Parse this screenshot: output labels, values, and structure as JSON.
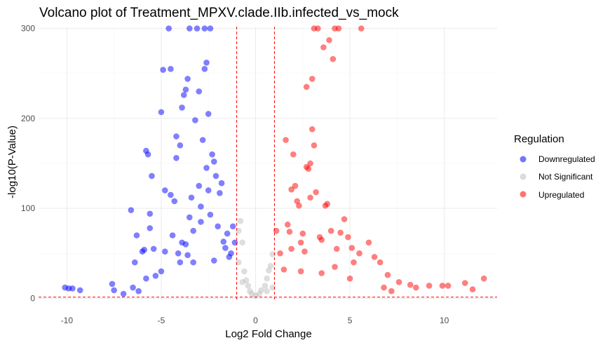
{
  "colors": {
    "down": "#0000ff",
    "ns": "#bebebe",
    "up": "#ff0000",
    "threshold": "#ff0000",
    "grid_major": "#ebebeb",
    "grid_minor": "#f5f5f5"
  },
  "chart_data": {
    "type": "scatter",
    "title": "Volcano plot of Treatment_MPXV.clade.IIb.infected_vs_mock",
    "xlabel": "Log2 Fold Change",
    "ylabel": "-log10(P-Value)",
    "xlim": [
      -11.5,
      12.8
    ],
    "ylim": [
      -2,
      302
    ],
    "x_ticks": [
      -10,
      -5,
      0,
      5,
      10
    ],
    "x_tick_labels": [
      "-10",
      "-5",
      "0",
      "5",
      "10"
    ],
    "y_ticks": [
      0,
      100,
      200,
      300
    ],
    "y_tick_labels": [
      "0",
      "100",
      "200",
      "300"
    ],
    "grid": true,
    "thresholds": {
      "log2fc": [
        -1,
        1
      ],
      "neg_log10_p": 1.3
    },
    "legend": {
      "title": "Regulation",
      "position": "right",
      "entries": [
        "Downregulated",
        "Not Significant",
        "Upregulated"
      ]
    },
    "series": [
      {
        "name": "Downregulated",
        "color": "#0000ff",
        "points": [
          [
            -10.1,
            12
          ],
          [
            -9.9,
            11
          ],
          [
            -9.7,
            11
          ],
          [
            -9.3,
            9
          ],
          [
            -7.6,
            16
          ],
          [
            -7.5,
            9
          ],
          [
            -7.0,
            5
          ],
          [
            -6.6,
            98
          ],
          [
            -6.4,
            40
          ],
          [
            -6.3,
            70
          ],
          [
            -6.2,
            8
          ],
          [
            -6.0,
            52
          ],
          [
            -5.9,
            54
          ],
          [
            -5.8,
            164
          ],
          [
            -5.7,
            160
          ],
          [
            -5.6,
            94
          ],
          [
            -5.6,
            78
          ],
          [
            -5.5,
            136
          ],
          [
            -5.4,
            55
          ],
          [
            -5.3,
            25
          ],
          [
            -5.0,
            207
          ],
          [
            -4.9,
            254
          ],
          [
            -4.8,
            52
          ],
          [
            -4.8,
            120
          ],
          [
            -4.6,
            300
          ],
          [
            -4.5,
            255
          ],
          [
            -4.5,
            115
          ],
          [
            -4.4,
            70
          ],
          [
            -4.3,
            108
          ],
          [
            -4.2,
            156
          ],
          [
            -4.2,
            180
          ],
          [
            -4.1,
            50
          ],
          [
            -4.0,
            170
          ],
          [
            -3.9,
            212
          ],
          [
            -3.9,
            62
          ],
          [
            -3.8,
            226
          ],
          [
            -3.7,
            232
          ],
          [
            -3.7,
            60
          ],
          [
            -3.6,
            244
          ],
          [
            -3.5,
            300
          ],
          [
            -3.5,
            90
          ],
          [
            -3.4,
            112
          ],
          [
            -3.3,
            75
          ],
          [
            -3.2,
            198
          ],
          [
            -3.1,
            300
          ],
          [
            -3.0,
            230
          ],
          [
            -3.0,
            125
          ],
          [
            -2.9,
            102
          ],
          [
            -2.8,
            176
          ],
          [
            -2.7,
            255
          ],
          [
            -2.7,
            300
          ],
          [
            -2.6,
            262
          ],
          [
            -2.6,
            145
          ],
          [
            -2.5,
            120
          ],
          [
            -2.5,
            205
          ],
          [
            -2.4,
            300
          ],
          [
            -2.4,
            93
          ],
          [
            -2.3,
            160
          ],
          [
            -2.2,
            152
          ],
          [
            -2.1,
            136
          ],
          [
            -2.0,
            80
          ],
          [
            -1.9,
            117
          ],
          [
            -1.8,
            128
          ],
          [
            -1.7,
            63
          ],
          [
            -1.6,
            56
          ],
          [
            -1.5,
            72
          ],
          [
            -1.4,
            46
          ],
          [
            -1.3,
            50
          ],
          [
            -1.2,
            80
          ],
          [
            -1.1,
            62
          ],
          [
            -2.9,
            85
          ],
          [
            -3.6,
            48
          ],
          [
            -4.0,
            40
          ],
          [
            -5.0,
            30
          ],
          [
            -5.8,
            22
          ],
          [
            -6.5,
            12
          ],
          [
            -3.3,
            40
          ],
          [
            -2.2,
            42
          ]
        ]
      },
      {
        "name": "Not Significant",
        "color": "#bebebe",
        "points": [
          [
            -0.9,
            75
          ],
          [
            -0.8,
            86
          ],
          [
            -0.7,
            62
          ],
          [
            -0.6,
            30
          ],
          [
            -0.5,
            20
          ],
          [
            -0.4,
            14
          ],
          [
            -0.3,
            8
          ],
          [
            -0.2,
            5
          ],
          [
            0.0,
            3
          ],
          [
            0.2,
            5
          ],
          [
            0.3,
            9
          ],
          [
            0.5,
            14
          ],
          [
            0.6,
            22
          ],
          [
            0.7,
            31
          ],
          [
            0.8,
            36
          ],
          [
            0.9,
            49
          ],
          [
            -0.9,
            40
          ],
          [
            -0.7,
            18
          ],
          [
            0.6,
            8
          ],
          [
            0.9,
            12
          ]
        ]
      },
      {
        "name": "Upregulated",
        "color": "#ff0000",
        "points": [
          [
            1.1,
            75
          ],
          [
            1.3,
            50
          ],
          [
            1.5,
            32
          ],
          [
            1.6,
            176
          ],
          [
            1.7,
            82
          ],
          [
            1.8,
            74
          ],
          [
            1.9,
            121
          ],
          [
            1.9,
            55
          ],
          [
            2.0,
            160
          ],
          [
            2.1,
            125
          ],
          [
            2.2,
            108
          ],
          [
            2.3,
            103
          ],
          [
            2.4,
            62
          ],
          [
            2.5,
            72
          ],
          [
            2.6,
            52
          ],
          [
            2.7,
            146
          ],
          [
            2.7,
            235
          ],
          [
            2.8,
            144
          ],
          [
            2.9,
            112
          ],
          [
            2.9,
            150
          ],
          [
            3.0,
            244
          ],
          [
            3.0,
            188
          ],
          [
            3.1,
            170
          ],
          [
            3.1,
            300
          ],
          [
            3.2,
            118
          ],
          [
            3.3,
            300
          ],
          [
            3.4,
            68
          ],
          [
            3.5,
            65
          ],
          [
            3.6,
            279
          ],
          [
            3.7,
            103
          ],
          [
            3.8,
            105
          ],
          [
            3.9,
            287
          ],
          [
            4.0,
            75
          ],
          [
            4.1,
            266
          ],
          [
            4.2,
            300
          ],
          [
            4.3,
            55
          ],
          [
            4.4,
            300
          ],
          [
            4.5,
            73
          ],
          [
            4.7,
            88
          ],
          [
            4.9,
            68
          ],
          [
            5.1,
            56
          ],
          [
            5.2,
            40
          ],
          [
            5.5,
            50
          ],
          [
            5.6,
            300
          ],
          [
            6.0,
            62
          ],
          [
            6.3,
            46
          ],
          [
            6.6,
            40
          ],
          [
            7.0,
            26
          ],
          [
            7.6,
            18
          ],
          [
            8.2,
            15
          ],
          [
            8.5,
            12
          ],
          [
            9.2,
            14
          ],
          [
            9.9,
            14
          ],
          [
            10.2,
            14
          ],
          [
            11.1,
            17
          ],
          [
            12.1,
            22
          ],
          [
            11.5,
            10
          ],
          [
            7.2,
            8
          ],
          [
            5.0,
            22
          ],
          [
            3.5,
            28
          ],
          [
            2.4,
            30
          ],
          [
            6.8,
            12
          ],
          [
            4.2,
            35
          ]
        ]
      }
    ]
  }
}
